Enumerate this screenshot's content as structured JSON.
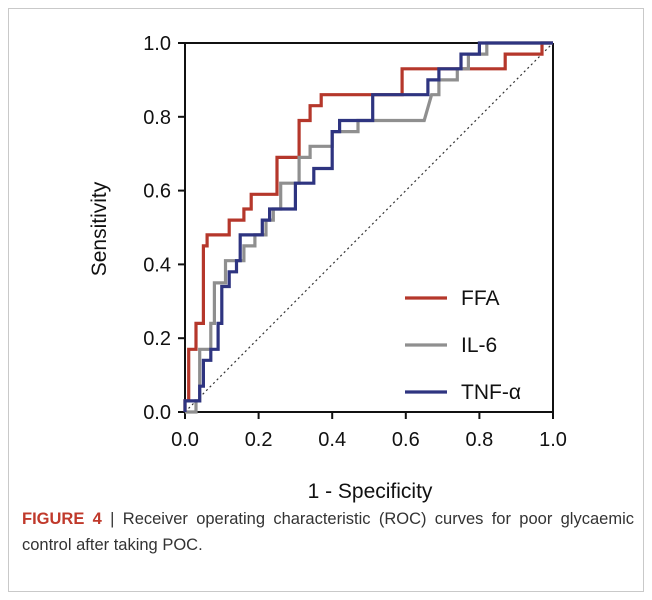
{
  "figure": {
    "caption_label": "FIGURE 4",
    "caption_separator": "|",
    "caption_text": "Receiver operating characteristic (ROC) curves for poor glycaemic control after taking POC."
  },
  "chart_data": {
    "type": "line",
    "title": "",
    "xlabel": "1 - Specificity",
    "ylabel": "Sensitivity",
    "xlim": [
      0.0,
      1.0
    ],
    "ylim": [
      0.0,
      1.0
    ],
    "xticks": [
      "0.0",
      "0.2",
      "0.4",
      "0.6",
      "0.8",
      "1.0"
    ],
    "yticks": [
      "0.0",
      "0.2",
      "0.4",
      "0.6",
      "0.8",
      "1.0"
    ],
    "grid": false,
    "legend_position": "bottom-right",
    "reference_line": {
      "from": [
        0,
        0
      ],
      "to": [
        1,
        1
      ],
      "style": "dotted"
    },
    "series": [
      {
        "name": "FFA",
        "color": "#b5372b",
        "points": [
          [
            0,
            0
          ],
          [
            0,
            0.03
          ],
          [
            0.01,
            0.03
          ],
          [
            0.01,
            0.17
          ],
          [
            0.03,
            0.17
          ],
          [
            0.03,
            0.24
          ],
          [
            0.05,
            0.24
          ],
          [
            0.05,
            0.45
          ],
          [
            0.06,
            0.45
          ],
          [
            0.06,
            0.48
          ],
          [
            0.12,
            0.48
          ],
          [
            0.12,
            0.52
          ],
          [
            0.16,
            0.52
          ],
          [
            0.16,
            0.55
          ],
          [
            0.18,
            0.55
          ],
          [
            0.18,
            0.59
          ],
          [
            0.25,
            0.59
          ],
          [
            0.25,
            0.69
          ],
          [
            0.31,
            0.69
          ],
          [
            0.31,
            0.79
          ],
          [
            0.34,
            0.79
          ],
          [
            0.34,
            0.83
          ],
          [
            0.37,
            0.83
          ],
          [
            0.37,
            0.86
          ],
          [
            0.59,
            0.86
          ],
          [
            0.59,
            0.93
          ],
          [
            0.87,
            0.93
          ],
          [
            0.87,
            0.97
          ],
          [
            0.97,
            0.97
          ],
          [
            0.97,
            1.0
          ],
          [
            1.0,
            1.0
          ]
        ]
      },
      {
        "name": "IL-6",
        "color": "#8f8f8f",
        "points": [
          [
            0,
            0
          ],
          [
            0.03,
            0
          ],
          [
            0.03,
            0.03
          ],
          [
            0.04,
            0.03
          ],
          [
            0.04,
            0.17
          ],
          [
            0.07,
            0.17
          ],
          [
            0.07,
            0.24
          ],
          [
            0.08,
            0.24
          ],
          [
            0.08,
            0.35
          ],
          [
            0.11,
            0.35
          ],
          [
            0.11,
            0.41
          ],
          [
            0.16,
            0.41
          ],
          [
            0.16,
            0.45
          ],
          [
            0.19,
            0.45
          ],
          [
            0.19,
            0.48
          ],
          [
            0.22,
            0.48
          ],
          [
            0.22,
            0.52
          ],
          [
            0.24,
            0.52
          ],
          [
            0.24,
            0.55
          ],
          [
            0.26,
            0.55
          ],
          [
            0.26,
            0.62
          ],
          [
            0.31,
            0.62
          ],
          [
            0.31,
            0.69
          ],
          [
            0.34,
            0.69
          ],
          [
            0.34,
            0.72
          ],
          [
            0.4,
            0.72
          ],
          [
            0.4,
            0.76
          ],
          [
            0.47,
            0.76
          ],
          [
            0.47,
            0.79
          ],
          [
            0.65,
            0.79
          ],
          [
            0.67,
            0.86
          ],
          [
            0.69,
            0.86
          ],
          [
            0.69,
            0.9
          ],
          [
            0.74,
            0.9
          ],
          [
            0.74,
            0.93
          ],
          [
            0.77,
            0.93
          ],
          [
            0.77,
            0.97
          ],
          [
            0.82,
            0.97
          ],
          [
            0.82,
            1.0
          ],
          [
            1.0,
            1.0
          ]
        ]
      },
      {
        "name": "TNF-α",
        "color": "#2e3480",
        "points": [
          [
            0,
            0
          ],
          [
            0,
            0.03
          ],
          [
            0.04,
            0.03
          ],
          [
            0.04,
            0.07
          ],
          [
            0.05,
            0.07
          ],
          [
            0.05,
            0.14
          ],
          [
            0.07,
            0.14
          ],
          [
            0.07,
            0.17
          ],
          [
            0.09,
            0.17
          ],
          [
            0.09,
            0.24
          ],
          [
            0.1,
            0.24
          ],
          [
            0.1,
            0.34
          ],
          [
            0.12,
            0.34
          ],
          [
            0.12,
            0.38
          ],
          [
            0.14,
            0.38
          ],
          [
            0.14,
            0.41
          ],
          [
            0.15,
            0.41
          ],
          [
            0.15,
            0.48
          ],
          [
            0.21,
            0.48
          ],
          [
            0.21,
            0.52
          ],
          [
            0.23,
            0.52
          ],
          [
            0.23,
            0.55
          ],
          [
            0.3,
            0.55
          ],
          [
            0.3,
            0.62
          ],
          [
            0.35,
            0.62
          ],
          [
            0.35,
            0.66
          ],
          [
            0.4,
            0.66
          ],
          [
            0.4,
            0.76
          ],
          [
            0.42,
            0.76
          ],
          [
            0.42,
            0.79
          ],
          [
            0.51,
            0.79
          ],
          [
            0.51,
            0.86
          ],
          [
            0.66,
            0.86
          ],
          [
            0.66,
            0.9
          ],
          [
            0.69,
            0.9
          ],
          [
            0.69,
            0.93
          ],
          [
            0.75,
            0.93
          ],
          [
            0.75,
            0.97
          ],
          [
            0.8,
            0.97
          ],
          [
            0.8,
            1.0
          ],
          [
            1.0,
            1.0
          ]
        ]
      }
    ]
  }
}
